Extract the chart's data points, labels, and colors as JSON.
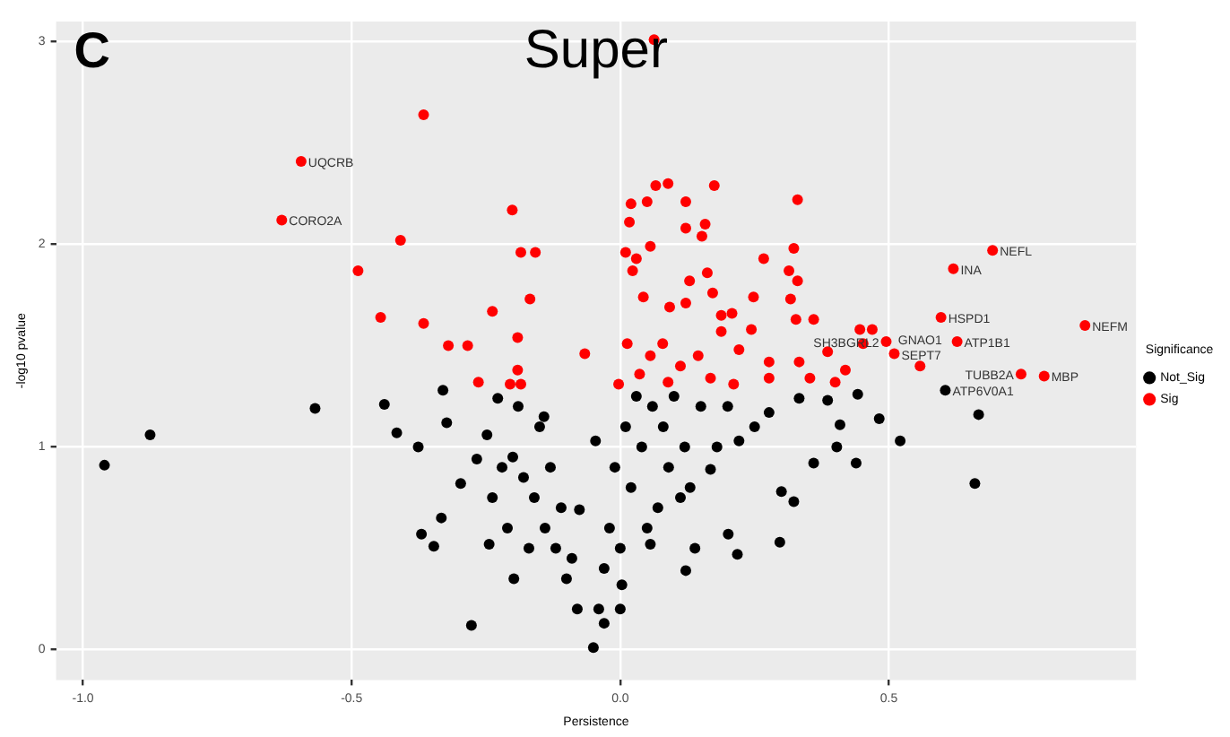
{
  "chart_data": {
    "type": "scatter",
    "title": "Super",
    "xlabel": "Persistence",
    "ylabel": "-log10 pvalue",
    "legend_title": "Significance",
    "legend": "right",
    "grid": true,
    "marker": "circle",
    "xlim": [
      -1.05,
      0.96
    ],
    "ylim": [
      -0.15,
      3.1
    ],
    "xticks": [
      {
        "value": -1,
        "label": "-1.0"
      },
      {
        "value": -0.5,
        "label": "-0.5"
      },
      {
        "value": 0,
        "label": "0.0"
      },
      {
        "value": 0.5,
        "label": "0.5"
      }
    ],
    "yticks": [
      0,
      1,
      2,
      3
    ],
    "annotations": [
      "C",
      {
        "text": "UQCRB",
        "x": -0.594,
        "y": 2.41
      },
      {
        "text": "CORO2A",
        "x": -0.63,
        "y": 2.12
      },
      {
        "text": "NEFL",
        "x": 0.693,
        "y": 1.97
      },
      {
        "text": "INA",
        "x": 0.62,
        "y": 1.88
      },
      {
        "text": "NEFM",
        "x": 0.865,
        "y": 1.6
      },
      {
        "text": "HSPD1",
        "x": 0.597,
        "y": 1.64
      },
      {
        "text": "ATP1B1",
        "x": 0.627,
        "y": 1.52
      },
      {
        "text": "SH3BGRL2",
        "x": 0.495,
        "y": 1.52
      },
      {
        "text": "SEPT7",
        "x": 0.51,
        "y": 1.46
      },
      {
        "text": "GNAO1",
        "x": 0.558,
        "y": 1.4
      },
      {
        "text": "TUBB2A",
        "x": 0.746,
        "y": 1.36
      },
      {
        "text": "MBP",
        "x": 0.789,
        "y": 1.35
      },
      {
        "text": "ATP6V0A1",
        "x": 0.605,
        "y": 1.28
      }
    ],
    "series": [
      {
        "name": "Not_Sig",
        "color": "#000000",
        "x": [
          -0.96,
          -0.875,
          -0.568,
          -0.439,
          -0.416,
          -0.376,
          -0.33,
          -0.323,
          -0.297,
          -0.333,
          -0.37,
          -0.347,
          -0.277,
          -0.267,
          -0.244,
          -0.238,
          -0.248,
          -0.228,
          -0.198,
          -0.142,
          -0.076,
          -0.046,
          -0.05,
          -0.08,
          -0.1,
          -0.12,
          -0.14,
          -0.16,
          -0.18,
          -0.2,
          -0.22,
          -0.19,
          -0.15,
          -0.13,
          -0.11,
          -0.17,
          -0.21,
          -0.09,
          0.442,
          0.482,
          0.667,
          0.521,
          0.66,
          0.439,
          0.3,
          0.323,
          0.297,
          0.201,
          0.218,
          0.139,
          0.122,
          0.403,
          0.36,
          0.409,
          0.386,
          0.333,
          0.277,
          0.221,
          0.168,
          0.112,
          0.056,
          0.003,
          -0.03,
          0,
          0.02,
          0.04,
          0.06,
          0.03,
          0.01,
          -0.01,
          -0.02,
          -0.03,
          0.08,
          0.1,
          0.12,
          0.15,
          0.2,
          0.25,
          0.18,
          0.13,
          0.09,
          0.07,
          0.05,
          -0.04,
          0,
          0.605
        ],
        "values": [
          0.91,
          1.06,
          1.19,
          1.21,
          1.07,
          1.0,
          1.28,
          1.12,
          0.82,
          0.65,
          0.57,
          0.51,
          0.12,
          0.94,
          0.52,
          0.75,
          1.06,
          1.24,
          0.35,
          1.15,
          0.69,
          1.03,
          0.01,
          0.2,
          0.35,
          0.5,
          0.6,
          0.75,
          0.85,
          0.95,
          0.9,
          1.2,
          1.1,
          0.9,
          0.7,
          0.5,
          0.6,
          0.45,
          1.26,
          1.14,
          1.16,
          1.03,
          0.82,
          0.92,
          0.78,
          0.73,
          0.53,
          0.57,
          0.47,
          0.5,
          0.39,
          1.0,
          0.92,
          1.11,
          1.23,
          1.24,
          1.17,
          1.03,
          0.89,
          0.75,
          0.52,
          0.32,
          0.13,
          0.5,
          0.8,
          1.0,
          1.2,
          1.25,
          1.1,
          0.9,
          0.6,
          0.4,
          1.1,
          1.25,
          1.0,
          1.2,
          1.2,
          1.1,
          1.0,
          0.8,
          0.9,
          0.7,
          0.6,
          0.2,
          0.2,
          1.28
        ]
      },
      {
        "name": "Sig",
        "color": "#ff0000",
        "x": [
          0.063,
          -0.366,
          -0.409,
          -0.488,
          -0.446,
          -0.366,
          -0.201,
          -0.185,
          -0.158,
          -0.238,
          -0.168,
          -0.191,
          -0.284,
          -0.32,
          -0.264,
          -0.205,
          -0.185,
          -0.066,
          -0.191,
          0.066,
          0.089,
          0.175,
          0.33,
          0.02,
          0.05,
          0.122,
          0.017,
          0.158,
          0.122,
          0.152,
          0.323,
          0.01,
          0.056,
          0.03,
          0.267,
          0.023,
          0.314,
          0.162,
          0.129,
          0.33,
          0.172,
          0.043,
          0.122,
          0.248,
          0.317,
          0.327,
          0.36,
          0.446,
          0.469,
          0.208,
          0.092,
          0.188,
          0.013,
          0.056,
          0.112,
          0.168,
          -0.003,
          0.211,
          0.277,
          0.333,
          0.386,
          0.419,
          0.452,
          0.353,
          0.4,
          0.277,
          0.221,
          0.079,
          0.145,
          0.036,
          0.089,
          0.188,
          0.244,
          -0.594,
          -0.63,
          0.693,
          0.62,
          0.865,
          0.597,
          0.627,
          0.495,
          0.51,
          0.558,
          0.746,
          0.789
        ],
        "values": [
          3.01,
          2.64,
          2.02,
          1.87,
          1.64,
          1.61,
          2.17,
          1.96,
          1.96,
          1.67,
          1.73,
          1.54,
          1.5,
          1.5,
          1.32,
          1.31,
          1.31,
          1.46,
          1.38,
          2.29,
          2.3,
          2.29,
          2.22,
          2.2,
          2.21,
          2.21,
          2.11,
          2.1,
          2.08,
          2.04,
          1.98,
          1.96,
          1.99,
          1.93,
          1.93,
          1.87,
          1.87,
          1.86,
          1.82,
          1.82,
          1.76,
          1.74,
          1.71,
          1.74,
          1.73,
          1.63,
          1.63,
          1.58,
          1.58,
          1.66,
          1.69,
          1.65,
          1.51,
          1.45,
          1.4,
          1.34,
          1.31,
          1.31,
          1.34,
          1.42,
          1.47,
          1.38,
          1.51,
          1.34,
          1.32,
          1.42,
          1.48,
          1.51,
          1.45,
          1.36,
          1.32,
          1.57,
          1.58,
          2.41,
          2.12,
          1.97,
          1.88,
          1.6,
          1.64,
          1.52,
          1.52,
          1.46,
          1.4,
          1.36,
          1.35
        ]
      }
    ]
  }
}
